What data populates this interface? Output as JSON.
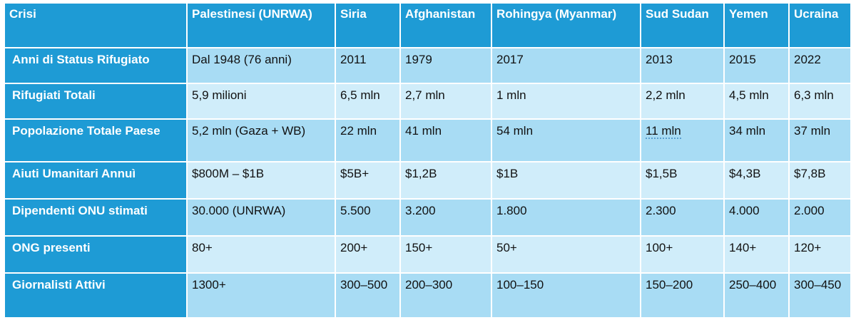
{
  "table": {
    "columns": [
      "Crisi",
      "Palestinesi (UNRWA)",
      "Siria",
      "Afghanistan",
      "Rohingya (Myanmar)",
      "Sud Sudan",
      "Yemen",
      "Ucraina"
    ],
    "rows": [
      {
        "label": "Anni di Status Rifugiato",
        "cells": [
          "Dal 1948 (76 anni)",
          "2011",
          "1979",
          "2017",
          "2013",
          "2015",
          "2022"
        ]
      },
      {
        "label": "Rifugiati Totali",
        "cells": [
          "5,9 milioni",
          "6,5 mln",
          "2,7 mln",
          "1 mln",
          "2,2 mln",
          "4,5 mln",
          "6,3 mln"
        ]
      },
      {
        "label": "Popolazione Totale Paese",
        "cells": [
          "5,2 mln (Gaza + WB)",
          "22 mln",
          "41 mln",
          "54 mln",
          "11 mln",
          "34 mln",
          "37 mln"
        ]
      },
      {
        "label": "Aiuti Umanitari Annuì",
        "cells": [
          "$800M – $1B",
          "$5B+",
          "$1,2B",
          "$1B",
          "$1,5B",
          "$4,3B",
          "$7,8B"
        ]
      },
      {
        "label": "Dipendenti ONU stimati",
        "cells": [
          "30.000 (UNRWA)",
          "5.500",
          "3.200",
          "1.800",
          "2.300",
          "4.000",
          "2.000"
        ]
      },
      {
        "label": "ONG presenti",
        "cells": [
          "80+",
          "200+",
          "150+",
          "50+",
          "100+",
          "140+",
          "120+"
        ]
      },
      {
        "label": "Giornalisti Attivi",
        "cells": [
          "1300+",
          "300–500",
          "200–300",
          "100–150",
          "150–200",
          "250–400",
          "300–450"
        ]
      }
    ]
  },
  "colors": {
    "header": "#1e9bd5",
    "row_odd": "#a8dcf4",
    "row_even": "#d0edfa"
  }
}
